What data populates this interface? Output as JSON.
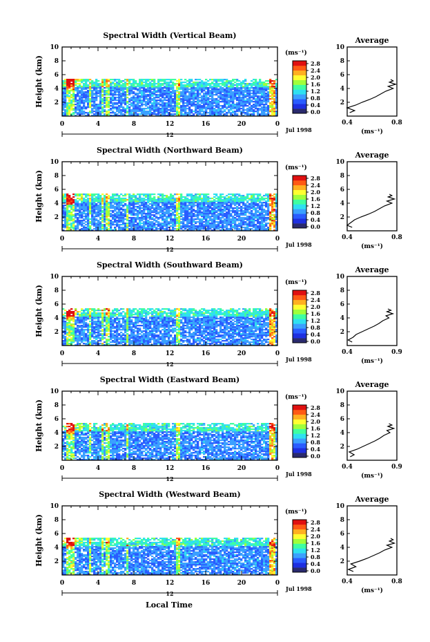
{
  "figure": {
    "xlabel": "Local Time",
    "date_label": "Jul 1998",
    "day_label": "12",
    "colorbar_unit": "(ms⁻¹)",
    "colorbar_ticks": [
      "2.8",
      "2.4",
      "2.0",
      "1.6",
      "1.2",
      "0.8",
      "0.4",
      "0.0"
    ],
    "colormap": [
      "#2a2a6e",
      "#1e2fe0",
      "#2a5cff",
      "#3ba0ff",
      "#2fe0f0",
      "#3fffa0",
      "#a0ff3a",
      "#ffff30",
      "#ffb020",
      "#ff5a14",
      "#e01010"
    ],
    "average_title": "Average"
  },
  "chart_data": [
    {
      "type": "heatmap",
      "title": "Spectral Width (Vertical Beam)",
      "ylabel": "Height (km)",
      "x_ticks": [
        "0",
        "4",
        "8",
        "12",
        "16",
        "20",
        "0"
      ],
      "y_ticks": [
        "10",
        "8",
        "6",
        "4",
        "2"
      ],
      "xlim": [
        0,
        24
      ],
      "ylim": [
        0,
        10
      ],
      "colorbar_range": [
        0.0,
        3.0
      ],
      "data_top_km": 5.3,
      "profile": {
        "xlim": [
          0.4,
          0.8
        ],
        "x_ticks": [
          "0.4",
          "0.8"
        ],
        "xlabel": "(ms⁻¹)",
        "height": [
          0.5,
          0.8,
          1.2,
          1.6,
          2.0,
          2.4,
          2.8,
          3.2,
          3.6,
          4.0,
          4.3,
          4.6,
          4.9,
          5.1,
          5.3
        ],
        "width": [
          0.42,
          0.46,
          0.4,
          0.47,
          0.52,
          0.58,
          0.63,
          0.67,
          0.71,
          0.77,
          0.73,
          0.79,
          0.74,
          0.77,
          0.75
        ]
      }
    },
    {
      "type": "heatmap",
      "title": "Spectral Width (Northward Beam)",
      "ylabel": "Height (km)",
      "x_ticks": [
        "0",
        "4",
        "8",
        "12",
        "16",
        "20",
        "0"
      ],
      "y_ticks": [
        "10",
        "8",
        "6",
        "4",
        "2"
      ],
      "xlim": [
        0,
        24
      ],
      "ylim": [
        0,
        10
      ],
      "colorbar_range": [
        0.0,
        3.0
      ],
      "data_top_km": 5.3,
      "profile": {
        "xlim": [
          0.4,
          0.8
        ],
        "x_ticks": [
          "0.4",
          "0.8"
        ],
        "xlabel": "(ms⁻¹)",
        "height": [
          0.5,
          0.8,
          1.2,
          1.6,
          2.0,
          2.4,
          2.8,
          3.2,
          3.6,
          4.0,
          4.3,
          4.6,
          4.9,
          5.1,
          5.3
        ],
        "width": [
          0.44,
          0.4,
          0.43,
          0.46,
          0.51,
          0.57,
          0.62,
          0.66,
          0.7,
          0.76,
          0.72,
          0.78,
          0.73,
          0.76,
          0.74
        ]
      }
    },
    {
      "type": "heatmap",
      "title": "Spectral Width (Southward Beam)",
      "ylabel": "Height (km)",
      "x_ticks": [
        "0",
        "4",
        "8",
        "12",
        "16",
        "20",
        "0"
      ],
      "y_ticks": [
        "10",
        "8",
        "6",
        "4",
        "2"
      ],
      "xlim": [
        0,
        24
      ],
      "ylim": [
        0,
        10
      ],
      "colorbar_range": [
        0.0,
        3.0
      ],
      "data_top_km": 5.3,
      "profile": {
        "xlim": [
          0.4,
          0.9
        ],
        "x_ticks": [
          "0.4",
          "0.9"
        ],
        "xlabel": "(ms⁻¹)",
        "height": [
          0.5,
          0.8,
          1.2,
          1.6,
          2.0,
          2.4,
          2.8,
          3.2,
          3.6,
          4.0,
          4.3,
          4.6,
          4.9,
          5.1,
          5.3
        ],
        "width": [
          0.45,
          0.41,
          0.46,
          0.49,
          0.55,
          0.61,
          0.67,
          0.72,
          0.76,
          0.82,
          0.79,
          0.86,
          0.8,
          0.84,
          0.81
        ]
      }
    },
    {
      "type": "heatmap",
      "title": "Spectral Width (Eastward Beam)",
      "ylabel": "Height (km)",
      "x_ticks": [
        "0",
        "4",
        "8",
        "12",
        "16",
        "20",
        "0"
      ],
      "y_ticks": [
        "10",
        "8",
        "6",
        "4",
        "2"
      ],
      "xlim": [
        0,
        24
      ],
      "ylim": [
        0,
        10
      ],
      "colorbar_range": [
        0.0,
        3.0
      ],
      "data_top_km": 5.3,
      "profile": {
        "xlim": [
          0.4,
          0.9
        ],
        "x_ticks": [
          "0.4",
          "0.9"
        ],
        "xlabel": "(ms⁻¹)",
        "height": [
          0.5,
          0.8,
          1.2,
          1.6,
          2.0,
          2.4,
          2.8,
          3.2,
          3.6,
          4.0,
          4.3,
          4.6,
          4.9,
          5.1,
          5.3
        ],
        "width": [
          0.43,
          0.47,
          0.42,
          0.5,
          0.56,
          0.62,
          0.68,
          0.73,
          0.77,
          0.83,
          0.8,
          0.87,
          0.81,
          0.85,
          0.82
        ]
      }
    },
    {
      "type": "heatmap",
      "title": "Spectral Width (Westward Beam)",
      "ylabel": "Height (km)",
      "x_ticks": [
        "0",
        "4",
        "8",
        "12",
        "16",
        "20",
        "0"
      ],
      "y_ticks": [
        "10",
        "8",
        "6",
        "4",
        "2"
      ],
      "xlim": [
        0,
        24
      ],
      "ylim": [
        0,
        10
      ],
      "colorbar_range": [
        0.0,
        3.0
      ],
      "data_top_km": 5.3,
      "profile": {
        "xlim": [
          0.4,
          0.8
        ],
        "x_ticks": [
          "0.4",
          "0.8"
        ],
        "xlabel": "(ms⁻¹)",
        "height": [
          0.5,
          0.8,
          1.2,
          1.6,
          2.0,
          2.4,
          2.8,
          3.2,
          3.6,
          4.0,
          4.3,
          4.6,
          4.9,
          5.1,
          5.3
        ],
        "width": [
          0.45,
          0.41,
          0.47,
          0.43,
          0.5,
          0.56,
          0.61,
          0.66,
          0.7,
          0.76,
          0.72,
          0.78,
          0.74,
          0.77,
          0.75
        ]
      }
    }
  ]
}
